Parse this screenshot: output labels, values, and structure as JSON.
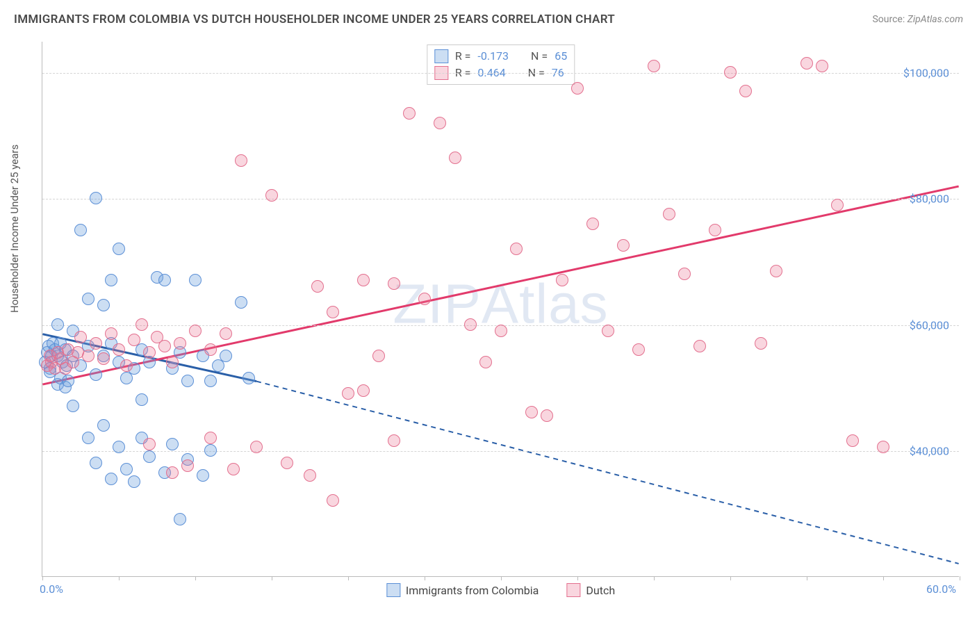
{
  "title": "IMMIGRANTS FROM COLOMBIA VS DUTCH HOUSEHOLDER INCOME UNDER 25 YEARS CORRELATION CHART",
  "source_label": "Source:",
  "source_value": "ZipAtlas.com",
  "watermark": {
    "bold": "ZIP",
    "thin": "Atlas"
  },
  "chart": {
    "type": "scatter",
    "ylabel": "Householder Income Under 25 years",
    "xlim": [
      0,
      60
    ],
    "ylim": [
      20000,
      105000
    ],
    "xticks_percent": [
      0,
      5,
      10,
      15,
      20,
      25,
      30,
      35,
      40,
      45,
      50,
      55,
      60
    ],
    "xaxis_labels": [
      {
        "pos": 0,
        "text": "0.0%"
      },
      {
        "pos": 60,
        "text": "60.0%"
      }
    ],
    "yticks": [
      {
        "v": 40000,
        "label": "$40,000"
      },
      {
        "v": 60000,
        "label": "$60,000"
      },
      {
        "v": 80000,
        "label": "$80,000"
      },
      {
        "v": 100000,
        "label": "$100,000"
      }
    ],
    "grid_color": "#d5d5d5",
    "background_color": "#ffffff",
    "yaxis_label_color": "#5b8fd6",
    "point_radius": 9,
    "series": [
      {
        "name": "Immigrants from Colombia",
        "fill": "rgba(108,160,220,0.35)",
        "stroke": "#5b8fd6",
        "trend_color": "#2a5fa8",
        "trend_width": 3,
        "r_label": "R =",
        "r_value": "-0.173",
        "n_label": "N =",
        "n_value": "65",
        "trend": {
          "x1": 0,
          "y1": 58500,
          "x2_solid": 14,
          "y2_solid": 51000,
          "x2": 60,
          "y2": 22000,
          "dash_after_solid": true
        },
        "points": [
          [
            0.2,
            54000
          ],
          [
            0.3,
            55500
          ],
          [
            0.5,
            53000
          ],
          [
            0.4,
            56500
          ],
          [
            0.6,
            55000
          ],
          [
            0.7,
            57000
          ],
          [
            0.8,
            56000
          ],
          [
            0.5,
            52500
          ],
          [
            1.0,
            55000
          ],
          [
            1.0,
            60000
          ],
          [
            1.2,
            57000
          ],
          [
            1.3,
            54000
          ],
          [
            1.5,
            56000
          ],
          [
            1.6,
            53500
          ],
          [
            1.0,
            50500
          ],
          [
            1.2,
            51500
          ],
          [
            1.5,
            50000
          ],
          [
            1.7,
            51000
          ],
          [
            2.0,
            59000
          ],
          [
            2.5,
            75000
          ],
          [
            3.0,
            64000
          ],
          [
            3.5,
            80000
          ],
          [
            4.0,
            63000
          ],
          [
            4.5,
            67000
          ],
          [
            5.0,
            72000
          ],
          [
            2.0,
            55000
          ],
          [
            2.5,
            53500
          ],
          [
            3.0,
            56500
          ],
          [
            3.5,
            52000
          ],
          [
            4.0,
            55000
          ],
          [
            4.5,
            57000
          ],
          [
            5.0,
            54000
          ],
          [
            5.5,
            51500
          ],
          [
            6.0,
            53000
          ],
          [
            6.5,
            56000
          ],
          [
            7.0,
            54000
          ],
          [
            7.5,
            67500
          ],
          [
            8.0,
            67000
          ],
          [
            8.5,
            53000
          ],
          [
            9.0,
            55500
          ],
          [
            9.5,
            51000
          ],
          [
            10.0,
            67000
          ],
          [
            10.5,
            55000
          ],
          [
            11.0,
            51000
          ],
          [
            11.5,
            53500
          ],
          [
            12.0,
            55000
          ],
          [
            13.0,
            63500
          ],
          [
            13.5,
            51500
          ],
          [
            2.0,
            47000
          ],
          [
            3.0,
            42000
          ],
          [
            3.5,
            38000
          ],
          [
            4.0,
            44000
          ],
          [
            4.5,
            35500
          ],
          [
            5.0,
            40500
          ],
          [
            5.5,
            37000
          ],
          [
            6.0,
            35000
          ],
          [
            6.5,
            42000
          ],
          [
            7.0,
            39000
          ],
          [
            8.0,
            36500
          ],
          [
            8.5,
            41000
          ],
          [
            9.5,
            38500
          ],
          [
            10.5,
            36000
          ],
          [
            11.0,
            40000
          ],
          [
            9.0,
            29000
          ],
          [
            6.5,
            48000
          ]
        ]
      },
      {
        "name": "Dutch",
        "fill": "rgba(235,120,150,0.30)",
        "stroke": "#e36f8e",
        "trend_color": "#e23a6b",
        "trend_width": 3,
        "r_label": "R =",
        "r_value": "0.464",
        "n_label": "N =",
        "n_value": "76",
        "trend": {
          "x1": 0,
          "y1": 50500,
          "x2": 60,
          "y2": 82000,
          "dash_after_solid": false
        },
        "points": [
          [
            0.3,
            53500
          ],
          [
            0.5,
            55000
          ],
          [
            0.6,
            54000
          ],
          [
            0.8,
            53000
          ],
          [
            1.0,
            55500
          ],
          [
            1.2,
            54500
          ],
          [
            1.5,
            53000
          ],
          [
            1.7,
            56000
          ],
          [
            2.0,
            54000
          ],
          [
            2.3,
            55500
          ],
          [
            2.5,
            58000
          ],
          [
            3.0,
            55000
          ],
          [
            3.5,
            57000
          ],
          [
            4.0,
            54500
          ],
          [
            4.5,
            58500
          ],
          [
            5.0,
            56000
          ],
          [
            5.5,
            53500
          ],
          [
            6.0,
            57500
          ],
          [
            6.5,
            60000
          ],
          [
            7.0,
            55500
          ],
          [
            7.5,
            58000
          ],
          [
            8.0,
            56500
          ],
          [
            8.5,
            54000
          ],
          [
            9.0,
            57000
          ],
          [
            10.0,
            59000
          ],
          [
            11.0,
            56000
          ],
          [
            12.0,
            58500
          ],
          [
            13.0,
            86000
          ],
          [
            15.0,
            80500
          ],
          [
            18.0,
            66000
          ],
          [
            19.0,
            62000
          ],
          [
            20.0,
            49000
          ],
          [
            21.0,
            67000
          ],
          [
            22.0,
            55000
          ],
          [
            23.0,
            66500
          ],
          [
            24.0,
            93500
          ],
          [
            25.0,
            64000
          ],
          [
            26.0,
            92000
          ],
          [
            27.0,
            86500
          ],
          [
            28.0,
            60000
          ],
          [
            29.0,
            54000
          ],
          [
            30.0,
            59000
          ],
          [
            31.0,
            72000
          ],
          [
            32.0,
            46000
          ],
          [
            33.0,
            45500
          ],
          [
            34.0,
            67000
          ],
          [
            35.0,
            97500
          ],
          [
            36.0,
            76000
          ],
          [
            37.0,
            59000
          ],
          [
            38.0,
            72500
          ],
          [
            39.0,
            56000
          ],
          [
            40.0,
            101000
          ],
          [
            41.0,
            77500
          ],
          [
            42.0,
            68000
          ],
          [
            43.0,
            56500
          ],
          [
            44.0,
            75000
          ],
          [
            45.0,
            100000
          ],
          [
            46.0,
            97000
          ],
          [
            47.0,
            57000
          ],
          [
            48.0,
            68500
          ],
          [
            50.0,
            101500
          ],
          [
            51.0,
            101000
          ],
          [
            52.0,
            79000
          ],
          [
            53.0,
            41500
          ],
          [
            55.0,
            40500
          ],
          [
            7.0,
            41000
          ],
          [
            8.5,
            36500
          ],
          [
            9.5,
            37500
          ],
          [
            11.0,
            42000
          ],
          [
            12.5,
            37000
          ],
          [
            14.0,
            40500
          ],
          [
            16.0,
            38000
          ],
          [
            17.5,
            36000
          ],
          [
            19.0,
            32000
          ],
          [
            21.0,
            49500
          ],
          [
            23.0,
            41500
          ]
        ]
      }
    ],
    "bottom_legend": [
      {
        "swatch_fill": "rgba(108,160,220,0.35)",
        "swatch_stroke": "#5b8fd6",
        "label": "Immigrants from Colombia"
      },
      {
        "swatch_fill": "rgba(235,120,150,0.30)",
        "swatch_stroke": "#e36f8e",
        "label": "Dutch"
      }
    ]
  }
}
